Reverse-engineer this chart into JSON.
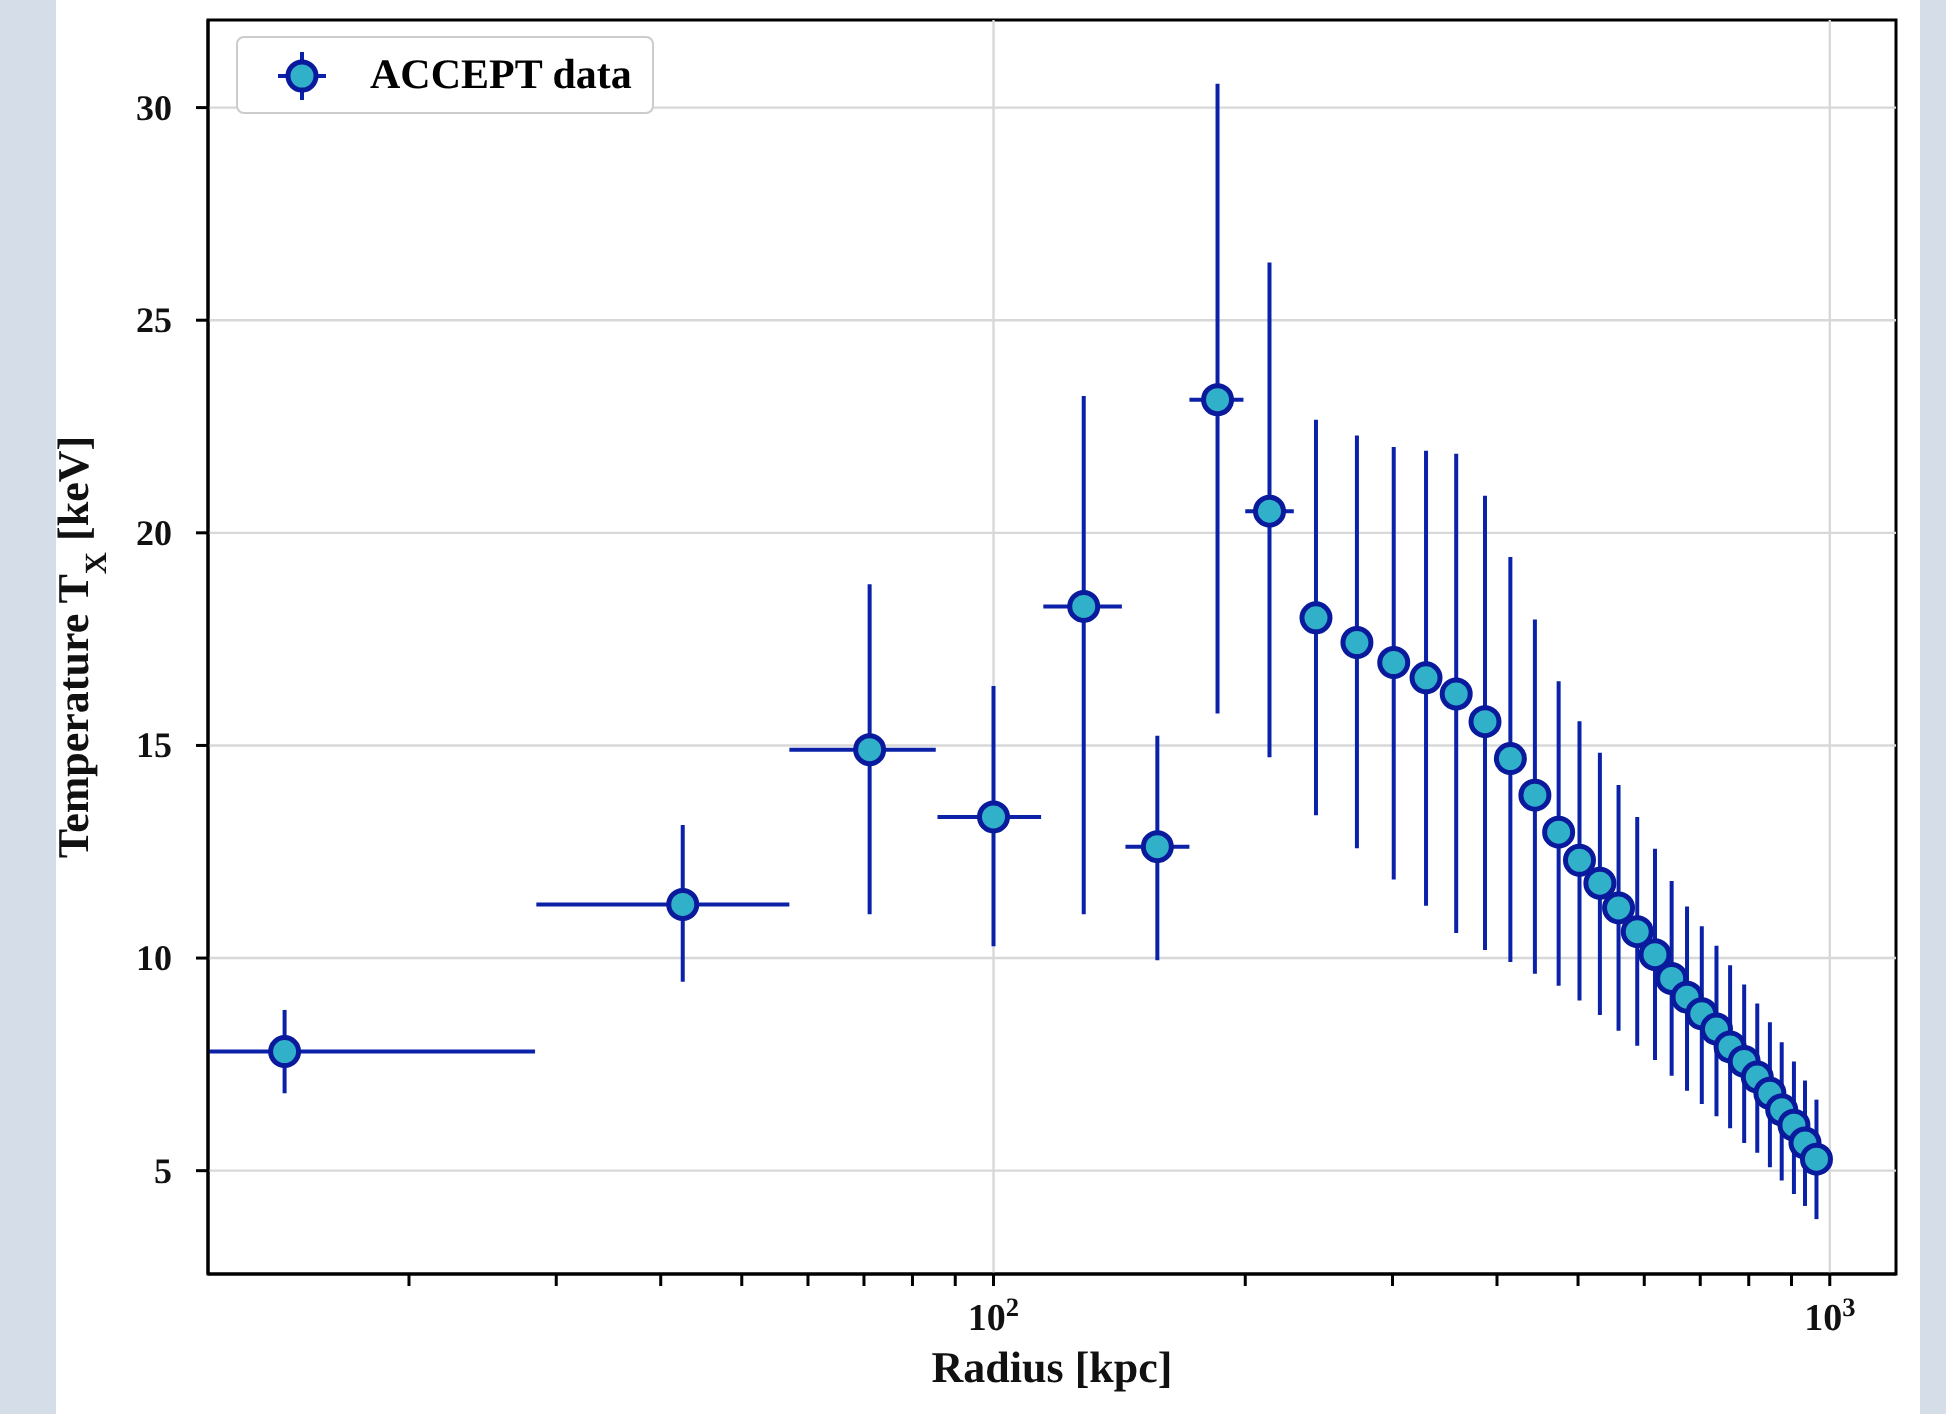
{
  "chart_data": {
    "type": "scatter",
    "xlabel": "Radius [kpc]",
    "ylabel": "Temperature T$_{X}$ [keV]",
    "log": "x",
    "grid": true,
    "legend": "top left",
    "marker": "circle",
    "xlim": [
      11.5,
      1200
    ],
    "ylim": [
      2.57,
      32.06
    ],
    "xticks": [
      {
        "value": 20,
        "label": null
      },
      {
        "value": 30,
        "label": null
      },
      {
        "value": 40,
        "label": null
      },
      {
        "value": 50,
        "label": null
      },
      {
        "value": 60,
        "label": null
      },
      {
        "value": 70,
        "label": null
      },
      {
        "value": 80,
        "label": null
      },
      {
        "value": 90,
        "label": null
      },
      {
        "value": 100,
        "label": "10$^{2}$"
      },
      {
        "value": 200,
        "label": null
      },
      {
        "value": 300,
        "label": null
      },
      {
        "value": 400,
        "label": null
      },
      {
        "value": 500,
        "label": null
      },
      {
        "value": 600,
        "label": null
      },
      {
        "value": 700,
        "label": null
      },
      {
        "value": 800,
        "label": null
      },
      {
        "value": 900,
        "label": null
      },
      {
        "value": 1000,
        "label": "10$^{3}$"
      }
    ],
    "yticks": [
      5,
      10,
      15,
      20,
      25,
      30
    ],
    "series": [
      {
        "name": "ACCEPT data",
        "color": "#31b0c9",
        "x": [
          14.2,
          42.5,
          71.1,
          100,
          128.2,
          157,
          185.3,
          213.8,
          243,
          272,
          301,
          329,
          357.5,
          387,
          415,
          444,
          474,
          502,
          531,
          559,
          588.5,
          618,
          647,
          675,
          703,
          732,
          760,
          790,
          819,
          848,
          876,
          906,
          934,
          964
        ],
        "values": [
          7.8,
          11.26,
          14.9,
          13.32,
          18.27,
          12.62,
          23.13,
          20.51,
          18.0,
          17.42,
          16.95,
          16.59,
          16.21,
          15.56,
          14.69,
          13.83,
          12.96,
          12.3,
          11.76,
          11.18,
          10.62,
          10.08,
          9.52,
          9.08,
          8.69,
          8.33,
          7.91,
          7.57,
          7.2,
          6.82,
          6.43,
          6.07,
          5.65,
          5.27
        ],
        "errors": [
          [
            6.82,
            8.78
          ],
          [
            9.44,
            13.13
          ],
          [
            11.03,
            18.79
          ],
          [
            10.28,
            16.4
          ],
          [
            11.03,
            23.22
          ],
          [
            9.95,
            15.23
          ],
          [
            15.75,
            30.56
          ],
          [
            14.72,
            26.36
          ],
          [
            13.36,
            22.66
          ],
          [
            12.58,
            22.29
          ],
          [
            11.85,
            22.02
          ],
          [
            11.23,
            21.93
          ],
          [
            10.59,
            21.86
          ],
          [
            10.19,
            20.87
          ],
          [
            9.91,
            19.43
          ],
          [
            9.63,
            17.96
          ],
          [
            9.35,
            16.51
          ],
          [
            9.0,
            15.57
          ],
          [
            8.66,
            14.83
          ],
          [
            8.29,
            14.07
          ],
          [
            7.94,
            13.32
          ],
          [
            7.6,
            12.57
          ],
          [
            7.23,
            11.81
          ],
          [
            6.88,
            11.21
          ],
          [
            6.57,
            10.75
          ],
          [
            6.28,
            10.29
          ],
          [
            6.0,
            9.83
          ],
          [
            5.65,
            9.38
          ],
          [
            5.42,
            8.93
          ],
          [
            5.08,
            8.49
          ],
          [
            4.77,
            8.02
          ],
          [
            4.45,
            7.57
          ],
          [
            4.17,
            7.12
          ],
          [
            3.86,
            6.67
          ]
        ],
        "xerrors": [
          [
            11.5,
            28.3
          ],
          [
            28.4,
            57.0
          ],
          [
            57.0,
            85.3
          ],
          [
            85.7,
            114
          ],
          [
            114.7,
            142.4
          ],
          [
            143.8,
            171.5
          ],
          [
            171.5,
            199
          ],
          [
            200,
            228.6
          ],
          null,
          null,
          null,
          null,
          null,
          null,
          null,
          null,
          null,
          null,
          null,
          null,
          null,
          null,
          null,
          null,
          null,
          null,
          null,
          null,
          null,
          null,
          null,
          null,
          null,
          null
        ]
      }
    ]
  }
}
